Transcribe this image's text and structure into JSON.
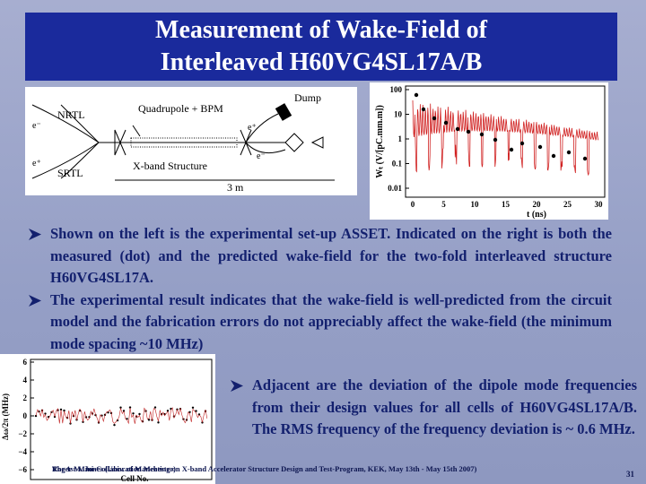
{
  "header": {
    "title": [
      "Measurement of Wake-Field of",
      "Interleaved H60VG4SL17A/B"
    ]
  },
  "setup_figure": {
    "labels": [
      "NRTL",
      "SRTL",
      "Quadrupole + BPM",
      "Dump",
      "X-band Structure",
      "3 m",
      "e⁻",
      "e⁺",
      "e⁺",
      "e⁻"
    ]
  },
  "wake_figure": {
    "y_label": "Wₜ (V/[pC.mm.m])",
    "x_label": "t (ns)",
    "y_ticks": [
      "100",
      "10",
      "1",
      "0.1",
      "0.01"
    ],
    "x_ticks": [
      "0",
      "5",
      "10",
      "15",
      "20",
      "25",
      "30"
    ]
  },
  "freq_figure": {
    "y_label": "Δω/2π (MHz)",
    "x_label": "Cell No.",
    "y_ticks": [
      "6",
      "4",
      "2",
      "0",
      "−2",
      "−4",
      "−6"
    ]
  },
  "bullets": [
    "Shown on the left is the experimental set-up ASSET. Indicated on the right is both the measured (dot) and the predicted wake-field for the two-fold interleaved structure H60VG4SL17A.",
    "The experimental result indicates that the wake-field is well-predicted from the circuit model and the fabrication errors do not appreciably affect the wake-field (the minimum mode spacing ~10 MHz)"
  ],
  "side_bullet": "Adjacent are the deviation of the dipole mode frequencies from their design values for all cells of H60VG4SL17A/B. The RMS frequency of the frequency deviation is ~ 0.6 MHz.",
  "footer": {
    "author": "Roger M. Jones (Univ. of Manchester)",
    "meeting": "The 1st Mini-Collaboration Meeting on X-band Accelerator Structure Design and Test-Program, KEK, May 13th - May 15th 2007)",
    "page": "31"
  }
}
